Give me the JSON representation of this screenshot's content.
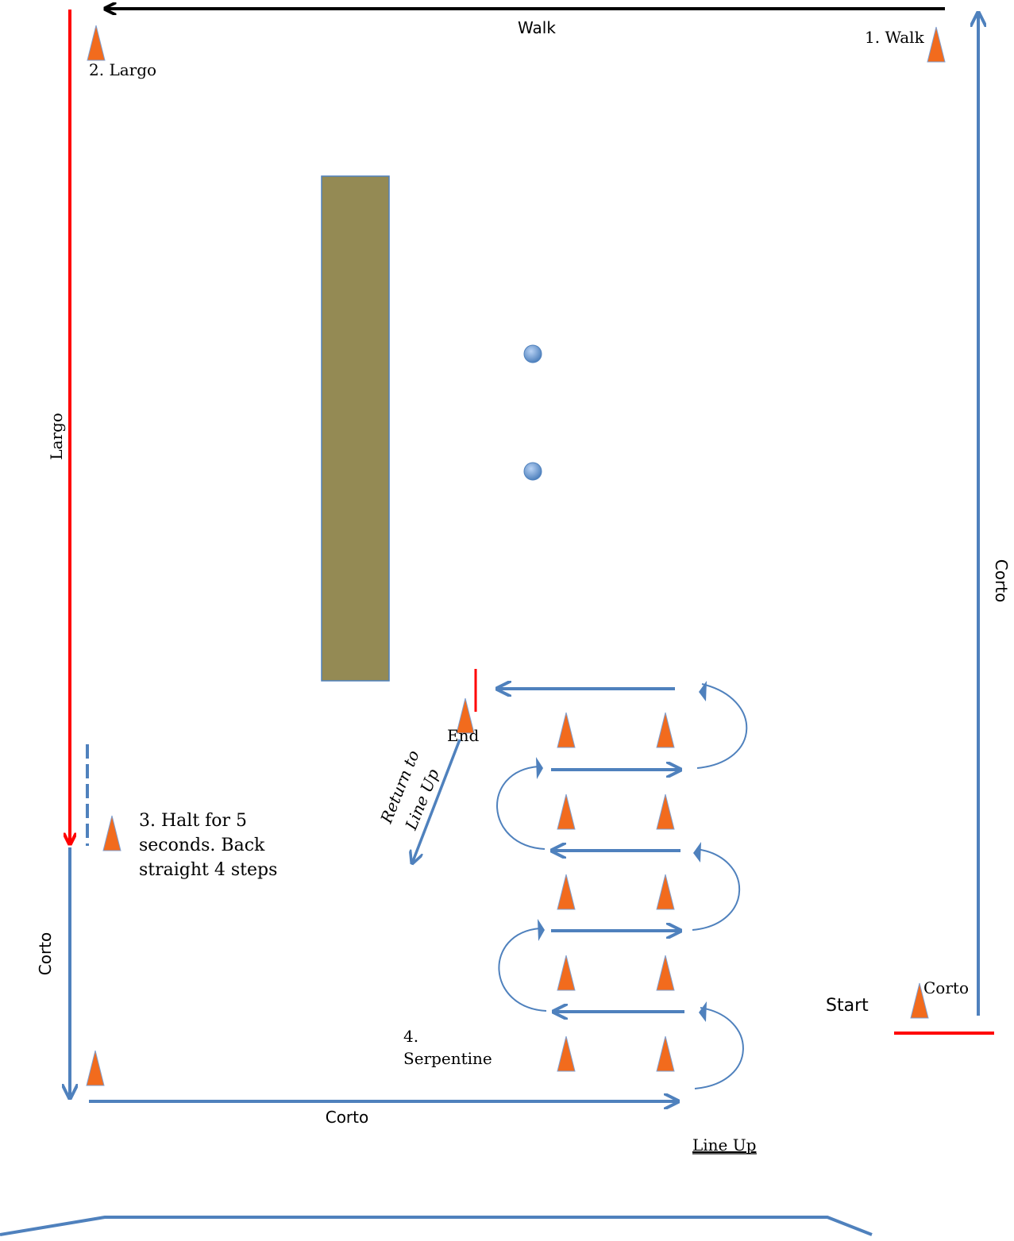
{
  "labels": {
    "walk_top": "Walk",
    "step1": "1. Walk",
    "step2": "2. Largo",
    "largo_side": "Largo",
    "corto_right": "Corto",
    "corto_left": "Corto",
    "corto_bottom": "Corto",
    "corto_start": "Corto",
    "start": "Start",
    "end": "End",
    "return_line1": "Return to",
    "return_line2": "Line Up",
    "step3_line1": "3. Halt for 5",
    "step3_line2": "seconds. Back",
    "step3_line3": "straight 4 steps",
    "step4_line1": "4.",
    "step4_line2": "Serpentine",
    "line_up": "Line Up"
  },
  "colors": {
    "blue_arrow": "#4f81bd",
    "red_line": "#ff0000",
    "black_arrow": "#000000",
    "cone": "#f26b1d",
    "cone_edge": "#5b86c2",
    "obstacle": "#948a54",
    "barrel": "#6f9fe0"
  }
}
